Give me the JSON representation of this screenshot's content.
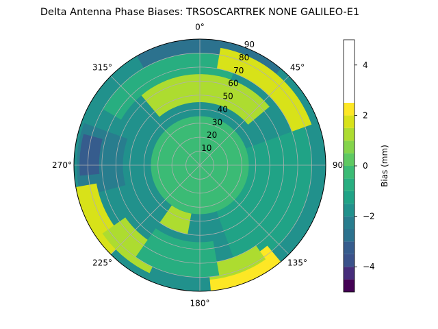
{
  "chart_data": {
    "type": "heatmap",
    "projection": "polar",
    "title": "Delta Antenna Phase Biases: TRSOSCARTREK    NONE GALILEO-E1",
    "angular_axis": {
      "zero_location": "top",
      "direction": "clockwise",
      "tick_labels": [
        "0°",
        "45°",
        "90",
        "135°",
        "180°",
        "225°",
        "270°",
        "315°"
      ]
    },
    "radial_axis": {
      "range": [
        0,
        90
      ],
      "tick_labels": [
        "10",
        "20",
        "30",
        "40",
        "50",
        "60",
        "70",
        "80",
        "90"
      ],
      "label_angle_deg": 22.5
    },
    "grid": true,
    "colorbar": {
      "label": "Bias (mm)",
      "range": [
        -5,
        5
      ],
      "tick_labels": [
        "−4",
        "−2",
        "0",
        "2",
        "4"
      ],
      "levels": [
        -5,
        -4.5,
        -4,
        -3.5,
        -3,
        -2.5,
        -2,
        -1.5,
        -1,
        -0.5,
        0,
        0.5,
        1,
        1.5,
        2,
        2.5,
        3,
        3.5,
        4,
        4.5,
        5
      ],
      "level_colors": [
        "#440154",
        "#472d7b",
        "#3b528b",
        "#365c8d",
        "#2c728e",
        "#287d8e",
        "#21918c",
        "#20a386",
        "#28ae80",
        "#3bbb75",
        "#5ec962",
        "#84d44b",
        "#addc30",
        "#d8e219",
        "#fde725"
      ]
    },
    "regions": [
      {
        "label": "rim band near 0°",
        "azimuth_range_deg": [
          -30,
          40
        ],
        "radius_range": [
          80,
          90
        ],
        "value_mm": -3.0
      },
      {
        "label": "outer ring sector",
        "azimuth_range_deg": [
          -60,
          20
        ],
        "radius_range": [
          65,
          80
        ],
        "value_mm": -1.0
      },
      {
        "label": "northern ridge",
        "azimuth_range_deg": [
          -40,
          50
        ],
        "radius_range": [
          45,
          65
        ],
        "value_mm": 1.2
      },
      {
        "label": "north-east patch",
        "azimuth_range_deg": [
          10,
          70
        ],
        "radius_range": [
          70,
          85
        ],
        "value_mm": 1.5
      },
      {
        "label": "west trough",
        "azimuth_range_deg": [
          255,
          290
        ],
        "radius_range": [
          55,
          88
        ],
        "value_mm": -2.2
      },
      {
        "label": "west minimum",
        "azimuth_range_deg": [
          265,
          285
        ],
        "radius_range": [
          72,
          86
        ],
        "value_mm": -3.2
      },
      {
        "label": "far west rim",
        "azimuth_range_deg": [
          225,
          260
        ],
        "radius_range": [
          75,
          90
        ],
        "value_mm": 1.8
      },
      {
        "label": "south-west lobe",
        "azimuth_range_deg": [
          205,
          235
        ],
        "radius_range": [
          65,
          85
        ],
        "value_mm": 1.3
      },
      {
        "label": "east band",
        "azimuth_range_deg": [
          70,
          160
        ],
        "radius_range": [
          30,
          80
        ],
        "value_mm": -1.3
      },
      {
        "label": "south-east rim",
        "azimuth_range_deg": [
          140,
          175
        ],
        "radius_range": [
          75,
          90
        ],
        "value_mm": 2.6
      },
      {
        "label": "south-east inner",
        "azimuth_range_deg": [
          145,
          175
        ],
        "radius_range": [
          70,
          82
        ],
        "value_mm": 1.2
      },
      {
        "label": "south patch",
        "azimuth_range_deg": [
          190,
          215
        ],
        "radius_range": [
          35,
          50
        ],
        "value_mm": 1.0
      },
      {
        "label": "south trough",
        "azimuth_range_deg": [
          170,
          215
        ],
        "radius_range": [
          55,
          80
        ],
        "value_mm": -0.8
      },
      {
        "label": "center",
        "azimuth_range_deg": [
          0,
          360
        ],
        "radius_range": [
          0,
          35
        ],
        "value_mm": -0.3
      }
    ]
  }
}
